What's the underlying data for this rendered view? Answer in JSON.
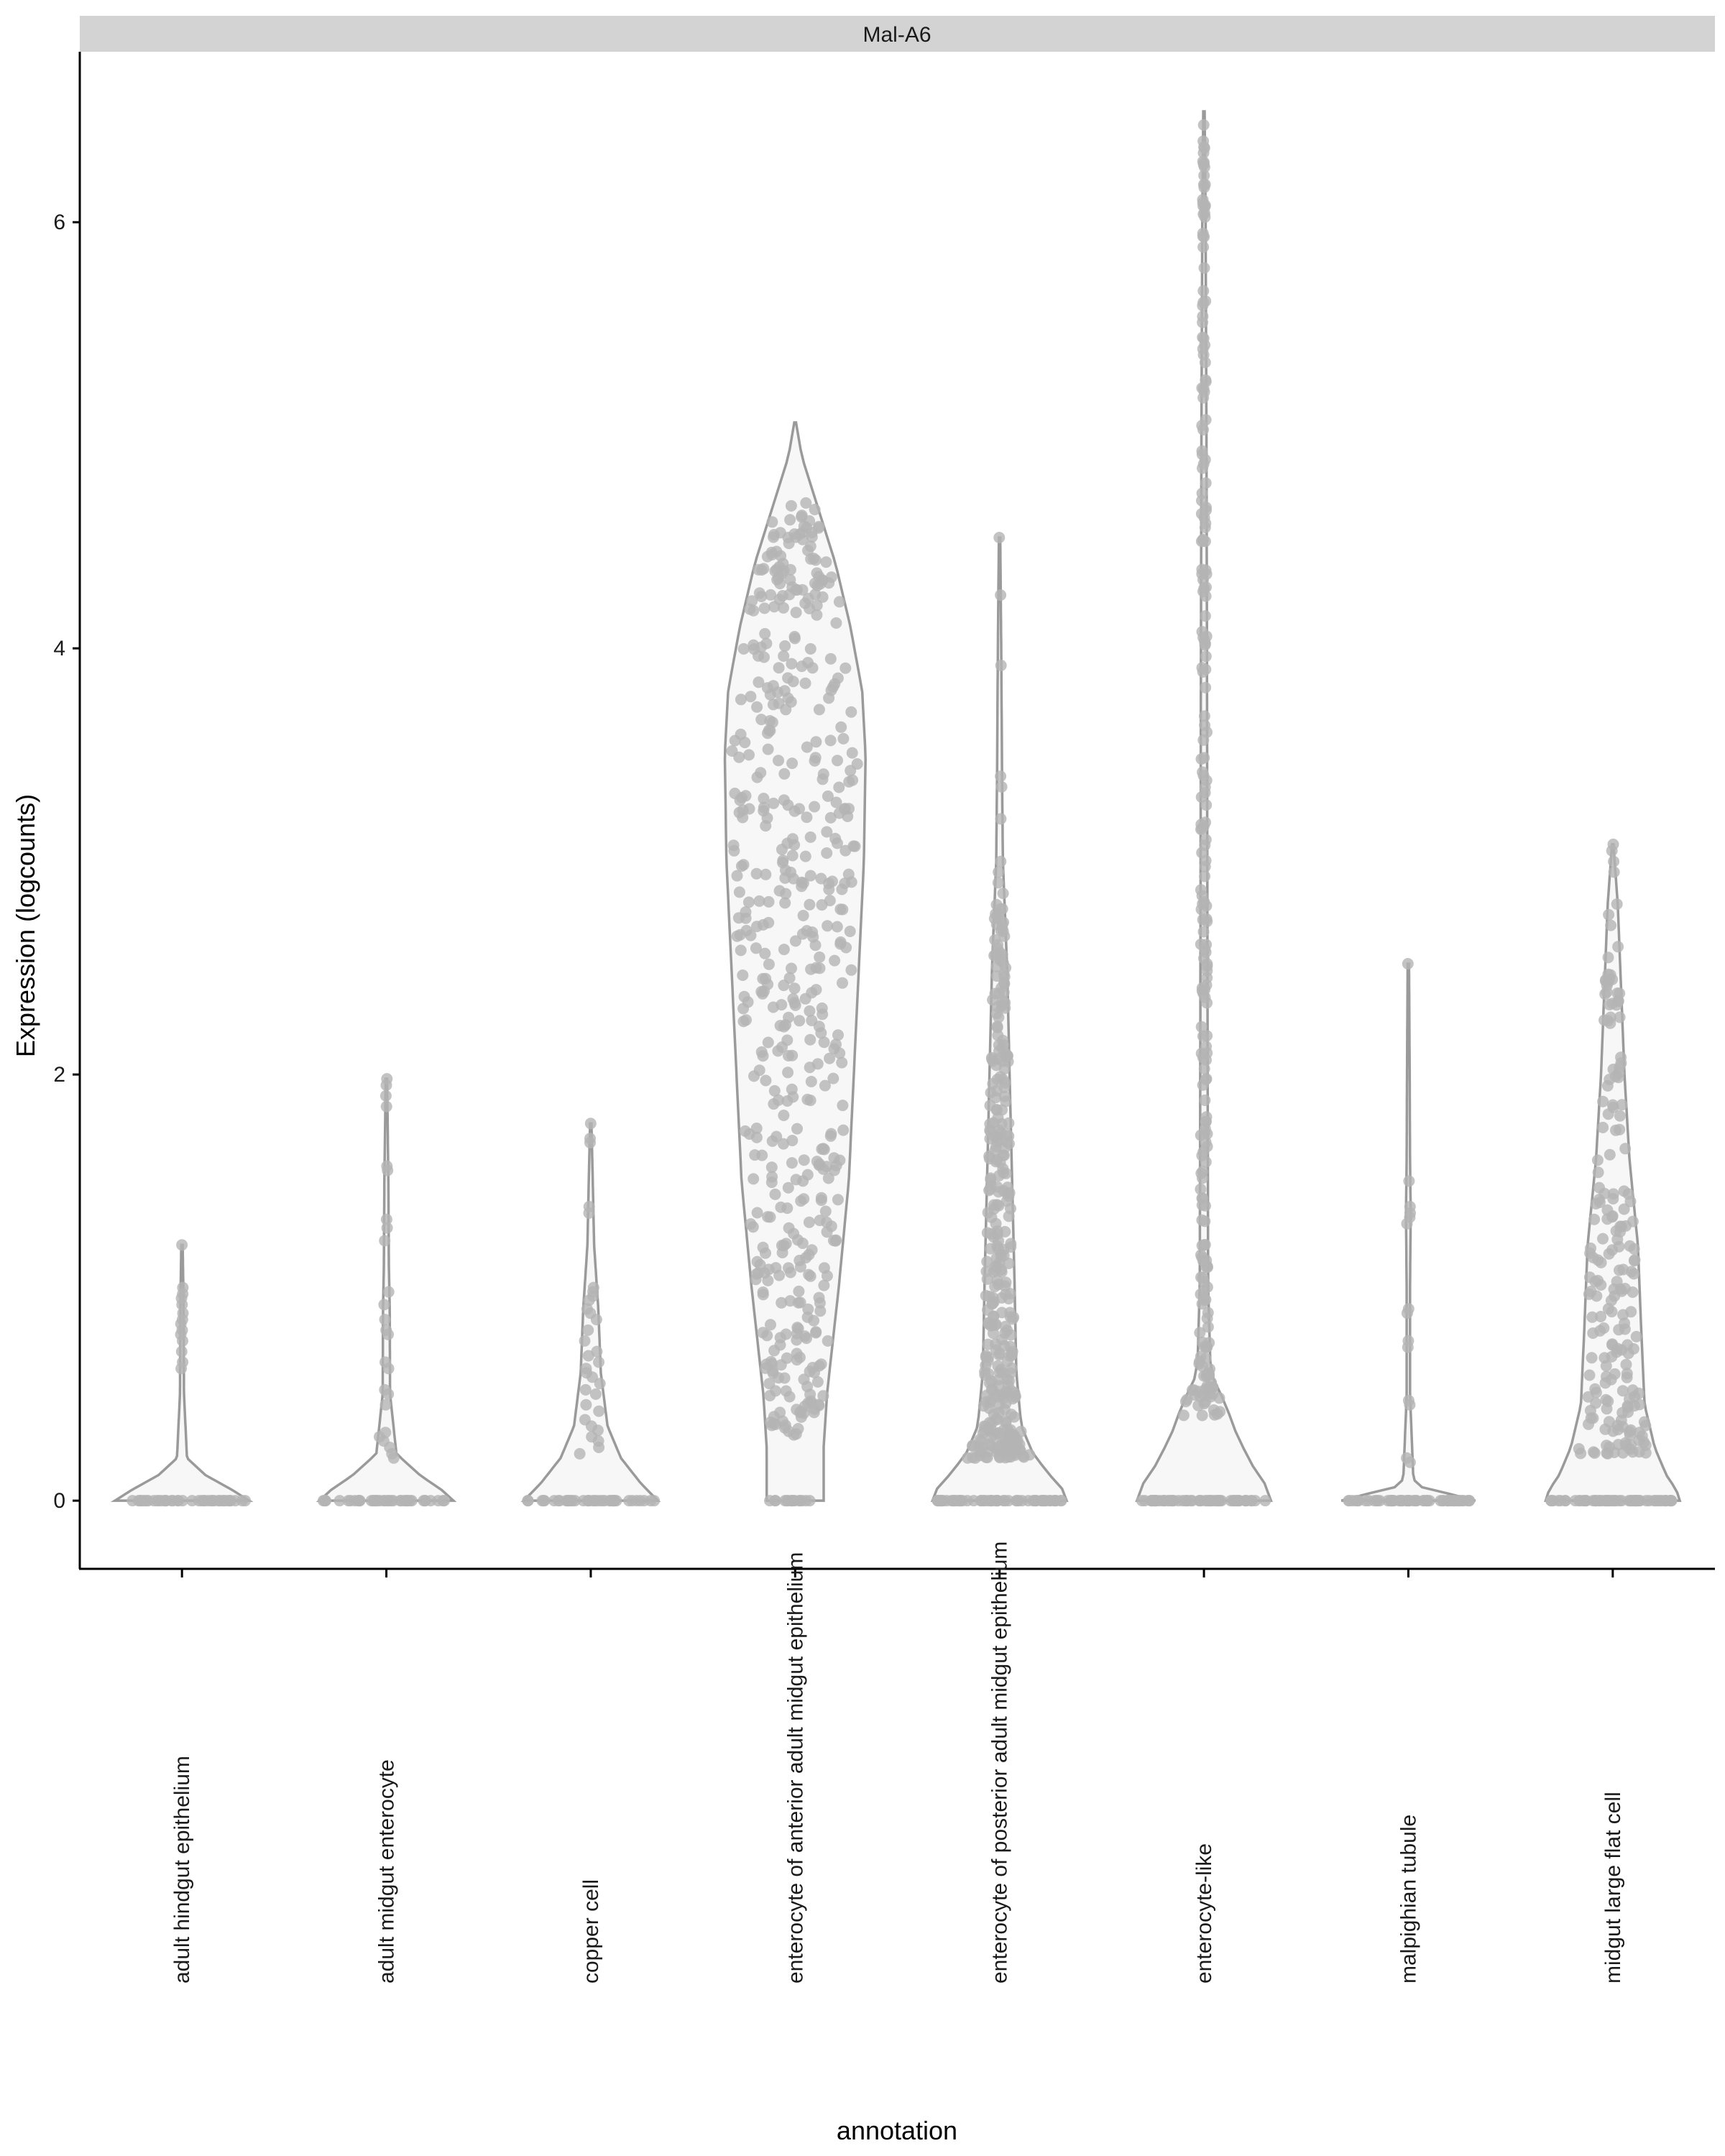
{
  "chart_data": {
    "type": "violin",
    "facet_label": "Mal-A6",
    "xlabel": "annotation",
    "ylabel": "Expression (logcounts)",
    "ylim": [
      -0.32,
      6.8
    ],
    "yticks": [
      0,
      2,
      4,
      6
    ],
    "categories": [
      "adult hindgut epithelium",
      "adult midgut enterocyte",
      "copper cell",
      "enterocyte of anterior adult midgut epithelium",
      "enterocyte of posterior adult midgut epithelium",
      "enterocyte-like",
      "malpighian tubule",
      "midgut large flat cell"
    ],
    "colors": {
      "violin_stroke": "#9a9a9a",
      "violin_fill": "#f7f7f7",
      "points": "#b4b4b4",
      "strip_bg": "#d3d3d3",
      "axis": "#000000"
    },
    "violins": [
      {
        "max": 1.2,
        "zero_cells": 40,
        "profile": [
          [
            0,
            0.4
          ],
          [
            0.05,
            0.3
          ],
          [
            0.12,
            0.14
          ],
          [
            0.2,
            0.03
          ],
          [
            0.5,
            0.012
          ],
          [
            0.8,
            0.01
          ],
          [
            1.0,
            0.008
          ],
          [
            1.2,
            0.004
          ]
        ],
        "points": [
          1.2,
          1.0,
          0.97,
          0.95,
          0.92,
          0.88,
          0.85,
          0.83,
          0.8,
          0.78,
          0.75,
          0.7,
          0.65,
          0.62
        ]
      },
      {
        "max": 1.98,
        "zero_cells": 40,
        "profile": [
          [
            0,
            0.4
          ],
          [
            0.05,
            0.33
          ],
          [
            0.12,
            0.2
          ],
          [
            0.22,
            0.06
          ],
          [
            0.5,
            0.022
          ],
          [
            0.9,
            0.02
          ],
          [
            1.1,
            0.015
          ],
          [
            1.5,
            0.012
          ],
          [
            1.98,
            0.004
          ]
        ],
        "points": [
          1.98,
          1.95,
          1.9,
          1.85,
          1.57,
          1.55,
          1.32,
          1.28,
          1.22,
          0.98,
          0.92,
          0.85,
          0.8,
          0.78,
          0.65,
          0.62,
          0.52,
          0.5,
          0.45,
          0.32,
          0.3,
          0.28,
          0.25,
          0.22,
          0.2
        ]
      },
      {
        "max": 1.77,
        "zero_cells": 40,
        "profile": [
          [
            0,
            0.4
          ],
          [
            0.08,
            0.3
          ],
          [
            0.2,
            0.18
          ],
          [
            0.35,
            0.1
          ],
          [
            0.6,
            0.06
          ],
          [
            0.9,
            0.045
          ],
          [
            1.2,
            0.02
          ],
          [
            1.5,
            0.012
          ],
          [
            1.77,
            0.004
          ]
        ],
        "points": [
          1.77,
          1.7,
          1.68,
          1.38,
          1.35,
          1.0,
          0.98,
          0.96,
          0.94,
          0.9,
          0.88,
          0.85,
          0.8,
          0.75,
          0.7,
          0.68,
          0.65,
          0.62,
          0.6,
          0.58,
          0.55,
          0.52,
          0.5,
          0.45,
          0.42,
          0.38,
          0.35,
          0.33,
          0.3,
          0.28,
          0.25,
          0.22
        ]
      },
      {
        "max": 5.06,
        "zero_cells": 15,
        "profile": [
          [
            0,
            0.17
          ],
          [
            0.25,
            0.17
          ],
          [
            0.5,
            0.19
          ],
          [
            1.0,
            0.26
          ],
          [
            1.5,
            0.32
          ],
          [
            2.0,
            0.35
          ],
          [
            2.5,
            0.38
          ],
          [
            3.0,
            0.41
          ],
          [
            3.5,
            0.42
          ],
          [
            3.8,
            0.4
          ],
          [
            4.1,
            0.33
          ],
          [
            4.4,
            0.24
          ],
          [
            4.7,
            0.12
          ],
          [
            4.9,
            0.04
          ],
          [
            5.06,
            0.005
          ]
        ],
        "points": [],
        "dense": 520,
        "dense_min": 0.3,
        "dense_max": 4.7
      },
      {
        "max": 4.52,
        "zero_cells": 60,
        "profile": [
          [
            0,
            0.4
          ],
          [
            0.05,
            0.38
          ],
          [
            0.12,
            0.3
          ],
          [
            0.22,
            0.2
          ],
          [
            0.35,
            0.13
          ],
          [
            0.6,
            0.1
          ],
          [
            1.0,
            0.09
          ],
          [
            1.5,
            0.075
          ],
          [
            2.0,
            0.06
          ],
          [
            2.5,
            0.045
          ],
          [
            3.0,
            0.02
          ],
          [
            3.4,
            0.015
          ],
          [
            4.0,
            0.01
          ],
          [
            4.52,
            0.004
          ]
        ],
        "points": [
          4.52,
          4.25,
          3.92,
          3.4,
          3.35,
          3.2,
          3.0,
          2.95,
          2.9,
          2.85
        ],
        "dense": 330,
        "dense_min": 0.2,
        "dense_max": 2.8
      },
      {
        "max": 6.52,
        "zero_cells": 60,
        "profile": [
          [
            0,
            0.4
          ],
          [
            0.05,
            0.39
          ],
          [
            0.15,
            0.3
          ],
          [
            0.3,
            0.2
          ],
          [
            0.45,
            0.13
          ],
          [
            0.6,
            0.04
          ],
          [
            1.0,
            0.025
          ],
          [
            2.0,
            0.022
          ],
          [
            3.0,
            0.02
          ],
          [
            4.0,
            0.018
          ],
          [
            5.0,
            0.015
          ],
          [
            6.0,
            0.01
          ],
          [
            6.52,
            0.004
          ]
        ],
        "points": [],
        "dense": 240,
        "dense_min": 0.4,
        "dense_max": 6.5
      },
      {
        "max": 2.52,
        "zero_cells": 60,
        "profile": [
          [
            0,
            0.4
          ],
          [
            0.02,
            0.34
          ],
          [
            0.05,
            0.1
          ],
          [
            0.1,
            0.03
          ],
          [
            0.5,
            0.01
          ],
          [
            1.0,
            0.01
          ],
          [
            1.35,
            0.014
          ],
          [
            1.6,
            0.01
          ],
          [
            2.0,
            0.008
          ],
          [
            2.52,
            0.004
          ]
        ],
        "points": [
          2.52,
          1.5,
          1.38,
          1.35,
          1.33,
          1.3,
          0.9,
          0.88,
          0.75,
          0.72,
          0.47,
          0.45,
          0.2,
          0.18
        ]
      },
      {
        "max": 3.08,
        "zero_cells": 60,
        "profile": [
          [
            0,
            0.4
          ],
          [
            0.05,
            0.38
          ],
          [
            0.12,
            0.32
          ],
          [
            0.25,
            0.25
          ],
          [
            0.45,
            0.19
          ],
          [
            0.8,
            0.17
          ],
          [
            1.2,
            0.15
          ],
          [
            1.6,
            0.1
          ],
          [
            2.0,
            0.07
          ],
          [
            2.4,
            0.05
          ],
          [
            2.8,
            0.03
          ],
          [
            3.08,
            0.004
          ]
        ],
        "points": [
          3.08,
          3.05,
          3.0,
          2.95,
          2.8,
          2.75,
          2.7,
          2.6
        ],
        "dense": 190,
        "dense_min": 0.22,
        "dense_max": 2.55
      }
    ]
  }
}
